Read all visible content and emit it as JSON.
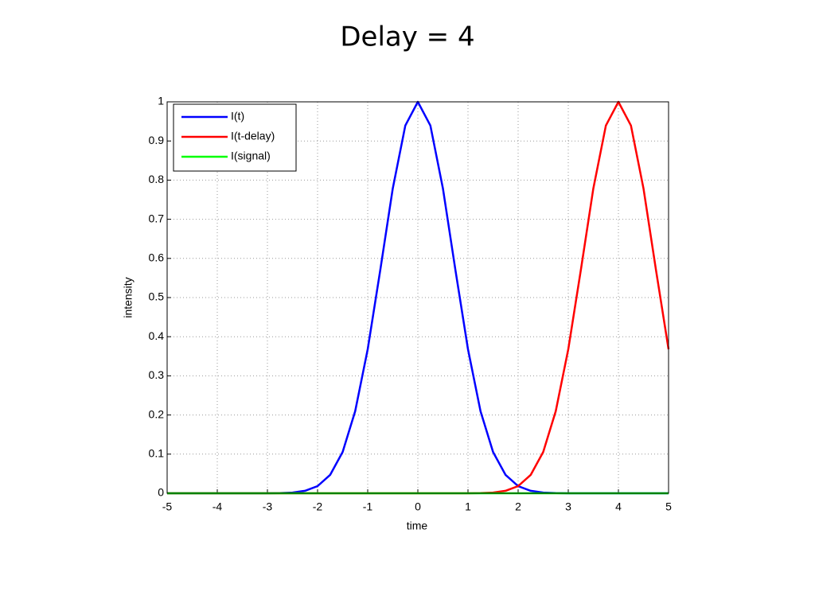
{
  "chart_data": {
    "type": "line",
    "title": "Delay = 4",
    "x_label": "time",
    "y_label": "intensity",
    "x": [
      -5,
      -4.75,
      -4.5,
      -4.25,
      -4,
      -3.75,
      -3.5,
      -3.25,
      -3,
      -2.75,
      -2.5,
      -2.25,
      -2,
      -1.75,
      -1.5,
      -1.25,
      -1,
      -0.75,
      -0.5,
      -0.25,
      0,
      0.25,
      0.5,
      0.75,
      1,
      1.25,
      1.5,
      1.75,
      2,
      2.25,
      2.5,
      2.75,
      3,
      3.25,
      3.5,
      3.75,
      4,
      4.25,
      4.5,
      4.75,
      5
    ],
    "series": [
      {
        "name": "I(t)",
        "color": "#0000ff",
        "values": [
          0,
          0,
          0,
          0,
          0,
          0,
          0,
          0,
          0.0001,
          0.0005,
          0.0019,
          0.0063,
          0.0183,
          0.0468,
          0.1054,
          0.2096,
          0.3679,
          0.5698,
          0.7788,
          0.9394,
          1,
          0.9394,
          0.7788,
          0.5698,
          0.3679,
          0.2096,
          0.1054,
          0.0468,
          0.0183,
          0.0063,
          0.0019,
          0.0005,
          0.0001,
          0,
          0,
          0,
          0,
          0,
          0,
          0,
          0
        ]
      },
      {
        "name": "I(t-delay)",
        "color": "#ff0000",
        "values": [
          0,
          0,
          0,
          0,
          0,
          0,
          0,
          0,
          0,
          0,
          0,
          0,
          0,
          0,
          0,
          0,
          0,
          0,
          0,
          0,
          0,
          0,
          0,
          0,
          0.0001,
          0.0005,
          0.0019,
          0.0063,
          0.0183,
          0.0468,
          0.1054,
          0.2096,
          0.3679,
          0.5698,
          0.7788,
          0.9394,
          1,
          0.9394,
          0.7788,
          0.5698,
          0.3679
        ]
      },
      {
        "name": "I(signal)",
        "color": "#00ff00",
        "values": [
          0,
          0,
          0,
          0,
          0,
          0,
          0,
          0,
          0,
          0,
          0,
          0,
          0,
          0,
          0,
          0,
          0,
          0,
          0,
          0,
          0,
          0,
          0,
          0,
          0,
          0,
          0,
          0,
          0,
          0,
          0,
          0,
          0,
          0,
          0,
          0,
          0,
          0,
          0,
          0,
          0
        ]
      }
    ],
    "xlim": [
      -5,
      5
    ],
    "ylim": [
      0,
      1
    ],
    "xticks": [
      -5,
      -4,
      -3,
      -2,
      -1,
      0,
      1,
      2,
      3,
      4,
      5
    ],
    "yticks": [
      0,
      0.1,
      0.2,
      0.3,
      0.4,
      0.5,
      0.6,
      0.7,
      0.8,
      0.9,
      1
    ],
    "grid": true,
    "legend": "upper-left"
  }
}
